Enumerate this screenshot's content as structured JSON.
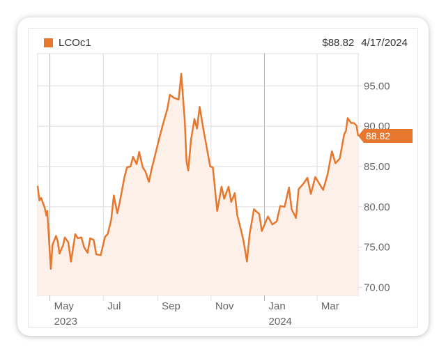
{
  "header": {
    "symbol": "LCOc1",
    "price": "$88.82",
    "date": "4/17/2024"
  },
  "colors": {
    "line": "#e8772e",
    "fill": "#fdf0e8",
    "grid": "#dddddd",
    "text": "#666666"
  },
  "chart_data": {
    "type": "area",
    "title": "",
    "xlabel": "",
    "ylabel": "",
    "ylim": [
      69.0,
      99.0
    ],
    "y_ticks": [
      "95.00",
      "90.00",
      "85.00",
      "80.00",
      "75.00",
      "70.00"
    ],
    "y_tick_values": [
      95,
      90,
      85,
      80,
      75,
      70
    ],
    "x_tick_labels": [
      "May",
      "Jul",
      "Sep",
      "Nov",
      "Jan",
      "Mar"
    ],
    "x_tick_dates": [
      "2023-05-01",
      "2023-07-01",
      "2023-09-01",
      "2023-11-01",
      "2024-01-01",
      "2024-03-01"
    ],
    "year_labels": [
      {
        "label": "2023",
        "date": "2023-05-01"
      },
      {
        "label": "2024",
        "date": "2024-01-01"
      }
    ],
    "last_price_label": "88.82",
    "series": [
      {
        "name": "LCOc1",
        "x": [
          "2023-04-17",
          "2023-04-19",
          "2023-04-21",
          "2023-04-25",
          "2023-04-27",
          "2023-04-28",
          "2023-05-02",
          "2023-05-04",
          "2023-05-08",
          "2023-05-10",
          "2023-05-12",
          "2023-05-16",
          "2023-05-18",
          "2023-05-22",
          "2023-05-25",
          "2023-05-30",
          "2023-06-02",
          "2023-06-06",
          "2023-06-09",
          "2023-06-13",
          "2023-06-16",
          "2023-06-20",
          "2023-06-23",
          "2023-06-28",
          "2023-07-03",
          "2023-07-06",
          "2023-07-10",
          "2023-07-13",
          "2023-07-17",
          "2023-07-20",
          "2023-07-25",
          "2023-07-28",
          "2023-08-01",
          "2023-08-04",
          "2023-08-08",
          "2023-08-11",
          "2023-08-15",
          "2023-08-18",
          "2023-08-22",
          "2023-08-25",
          "2023-08-30",
          "2023-09-04",
          "2023-09-08",
          "2023-09-12",
          "2023-09-15",
          "2023-09-20",
          "2023-09-25",
          "2023-09-28",
          "2023-10-02",
          "2023-10-04",
          "2023-10-06",
          "2023-10-09",
          "2023-10-13",
          "2023-10-16",
          "2023-10-19",
          "2023-10-23",
          "2023-10-26",
          "2023-10-31",
          "2023-11-03",
          "2023-11-08",
          "2023-11-13",
          "2023-11-16",
          "2023-11-21",
          "2023-11-24",
          "2023-11-28",
          "2023-12-01",
          "2023-12-05",
          "2023-12-08",
          "2023-12-12",
          "2023-12-15",
          "2023-12-20",
          "2023-12-26",
          "2023-12-29",
          "2024-01-03",
          "2024-01-05",
          "2024-01-10",
          "2024-01-15",
          "2024-01-19",
          "2024-01-24",
          "2024-01-29",
          "2024-02-01",
          "2024-02-06",
          "2024-02-09",
          "2024-02-14",
          "2024-02-19",
          "2024-02-23",
          "2024-02-28",
          "2024-03-04",
          "2024-03-08",
          "2024-03-13",
          "2024-03-18",
          "2024-03-22",
          "2024-03-27",
          "2024-04-01",
          "2024-04-03",
          "2024-04-05",
          "2024-04-09",
          "2024-04-12",
          "2024-04-15",
          "2024-04-17"
        ],
        "y": [
          82.6,
          80.8,
          81.1,
          79.9,
          78.9,
          79.5,
          72.3,
          75.3,
          76.4,
          75.7,
          74.2,
          75.2,
          76.2,
          75.6,
          73.2,
          76.6,
          76.1,
          76.2,
          75.0,
          74.3,
          76.1,
          75.9,
          74.1,
          74.0,
          76.3,
          76.6,
          78.4,
          81.4,
          79.2,
          80.7,
          83.6,
          84.9,
          85.0,
          86.2,
          85.3,
          86.8,
          84.9,
          84.4,
          83.1,
          84.6,
          86.8,
          89.0,
          90.6,
          92.1,
          93.9,
          93.5,
          93.3,
          96.5,
          90.7,
          85.6,
          84.5,
          88.2,
          90.9,
          89.7,
          92.4,
          89.8,
          88.0,
          85.0,
          84.9,
          79.5,
          82.5,
          81.0,
          82.5,
          80.6,
          81.7,
          78.9,
          77.2,
          75.8,
          73.2,
          76.6,
          79.7,
          79.1,
          77.0,
          78.3,
          78.8,
          77.8,
          78.2,
          80.1,
          80.0,
          82.4,
          79.7,
          78.6,
          82.2,
          82.8,
          83.6,
          81.6,
          83.7,
          82.8,
          82.1,
          84.0,
          86.9,
          85.4,
          86.0,
          89.0,
          89.4,
          91.0,
          90.4,
          90.4,
          90.1,
          88.8
        ]
      }
    ]
  }
}
